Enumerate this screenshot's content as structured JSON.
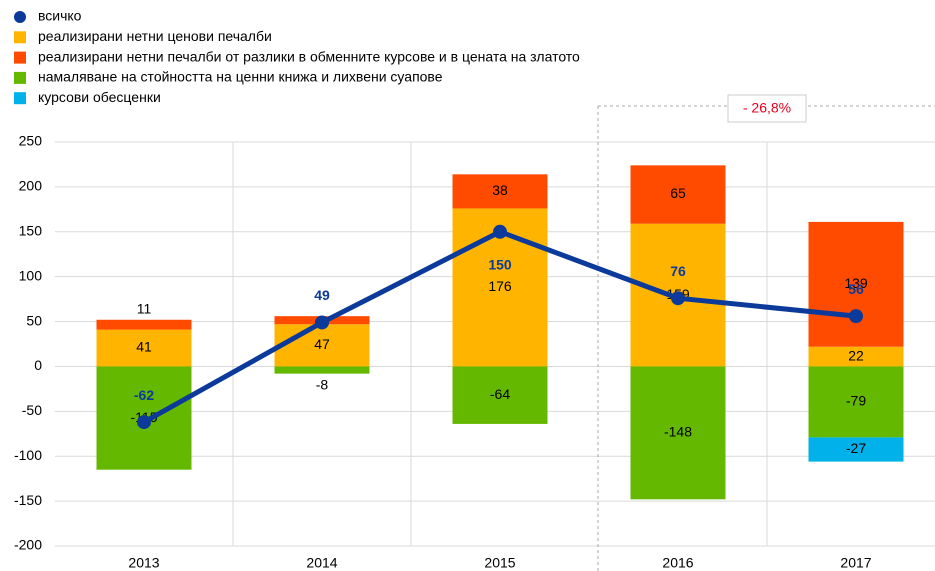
{
  "chart_data": {
    "type": "bar",
    "categories": [
      "2013",
      "2014",
      "2015",
      "2016",
      "2017"
    ],
    "stacked": true,
    "series": [
      {
        "name": "всичко",
        "type": "line",
        "color": "#0b3a9a",
        "values": [
          -62,
          49,
          150,
          76,
          56
        ]
      },
      {
        "name": "реализирани нетни ценови печалби",
        "color": "#ffb400",
        "values": [
          41,
          47,
          176,
          159,
          22
        ]
      },
      {
        "name": "реализирани нетни печалби от разлики в обменните курсове и в цената на златото",
        "color": "#ff4b00",
        "values": [
          11,
          9,
          38,
          65,
          139
        ],
        "value_labels": [
          "11",
          null,
          "38",
          "65",
          "139"
        ]
      },
      {
        "name": "намаляване на стойността на ценни книжа и лихвени суапове",
        "color": "#65b800",
        "values": [
          -115,
          -8,
          -64,
          -148,
          -79
        ]
      },
      {
        "name": "курсови обесценки",
        "color": "#00b1ea",
        "values": [
          null,
          null,
          null,
          null,
          -27
        ]
      }
    ],
    "ylim": [
      -200,
      250
    ],
    "yticks": [
      -200,
      -150,
      -100,
      -50,
      0,
      50,
      100,
      150,
      200,
      250
    ],
    "grid": true,
    "annotation": "- 26,8%"
  }
}
